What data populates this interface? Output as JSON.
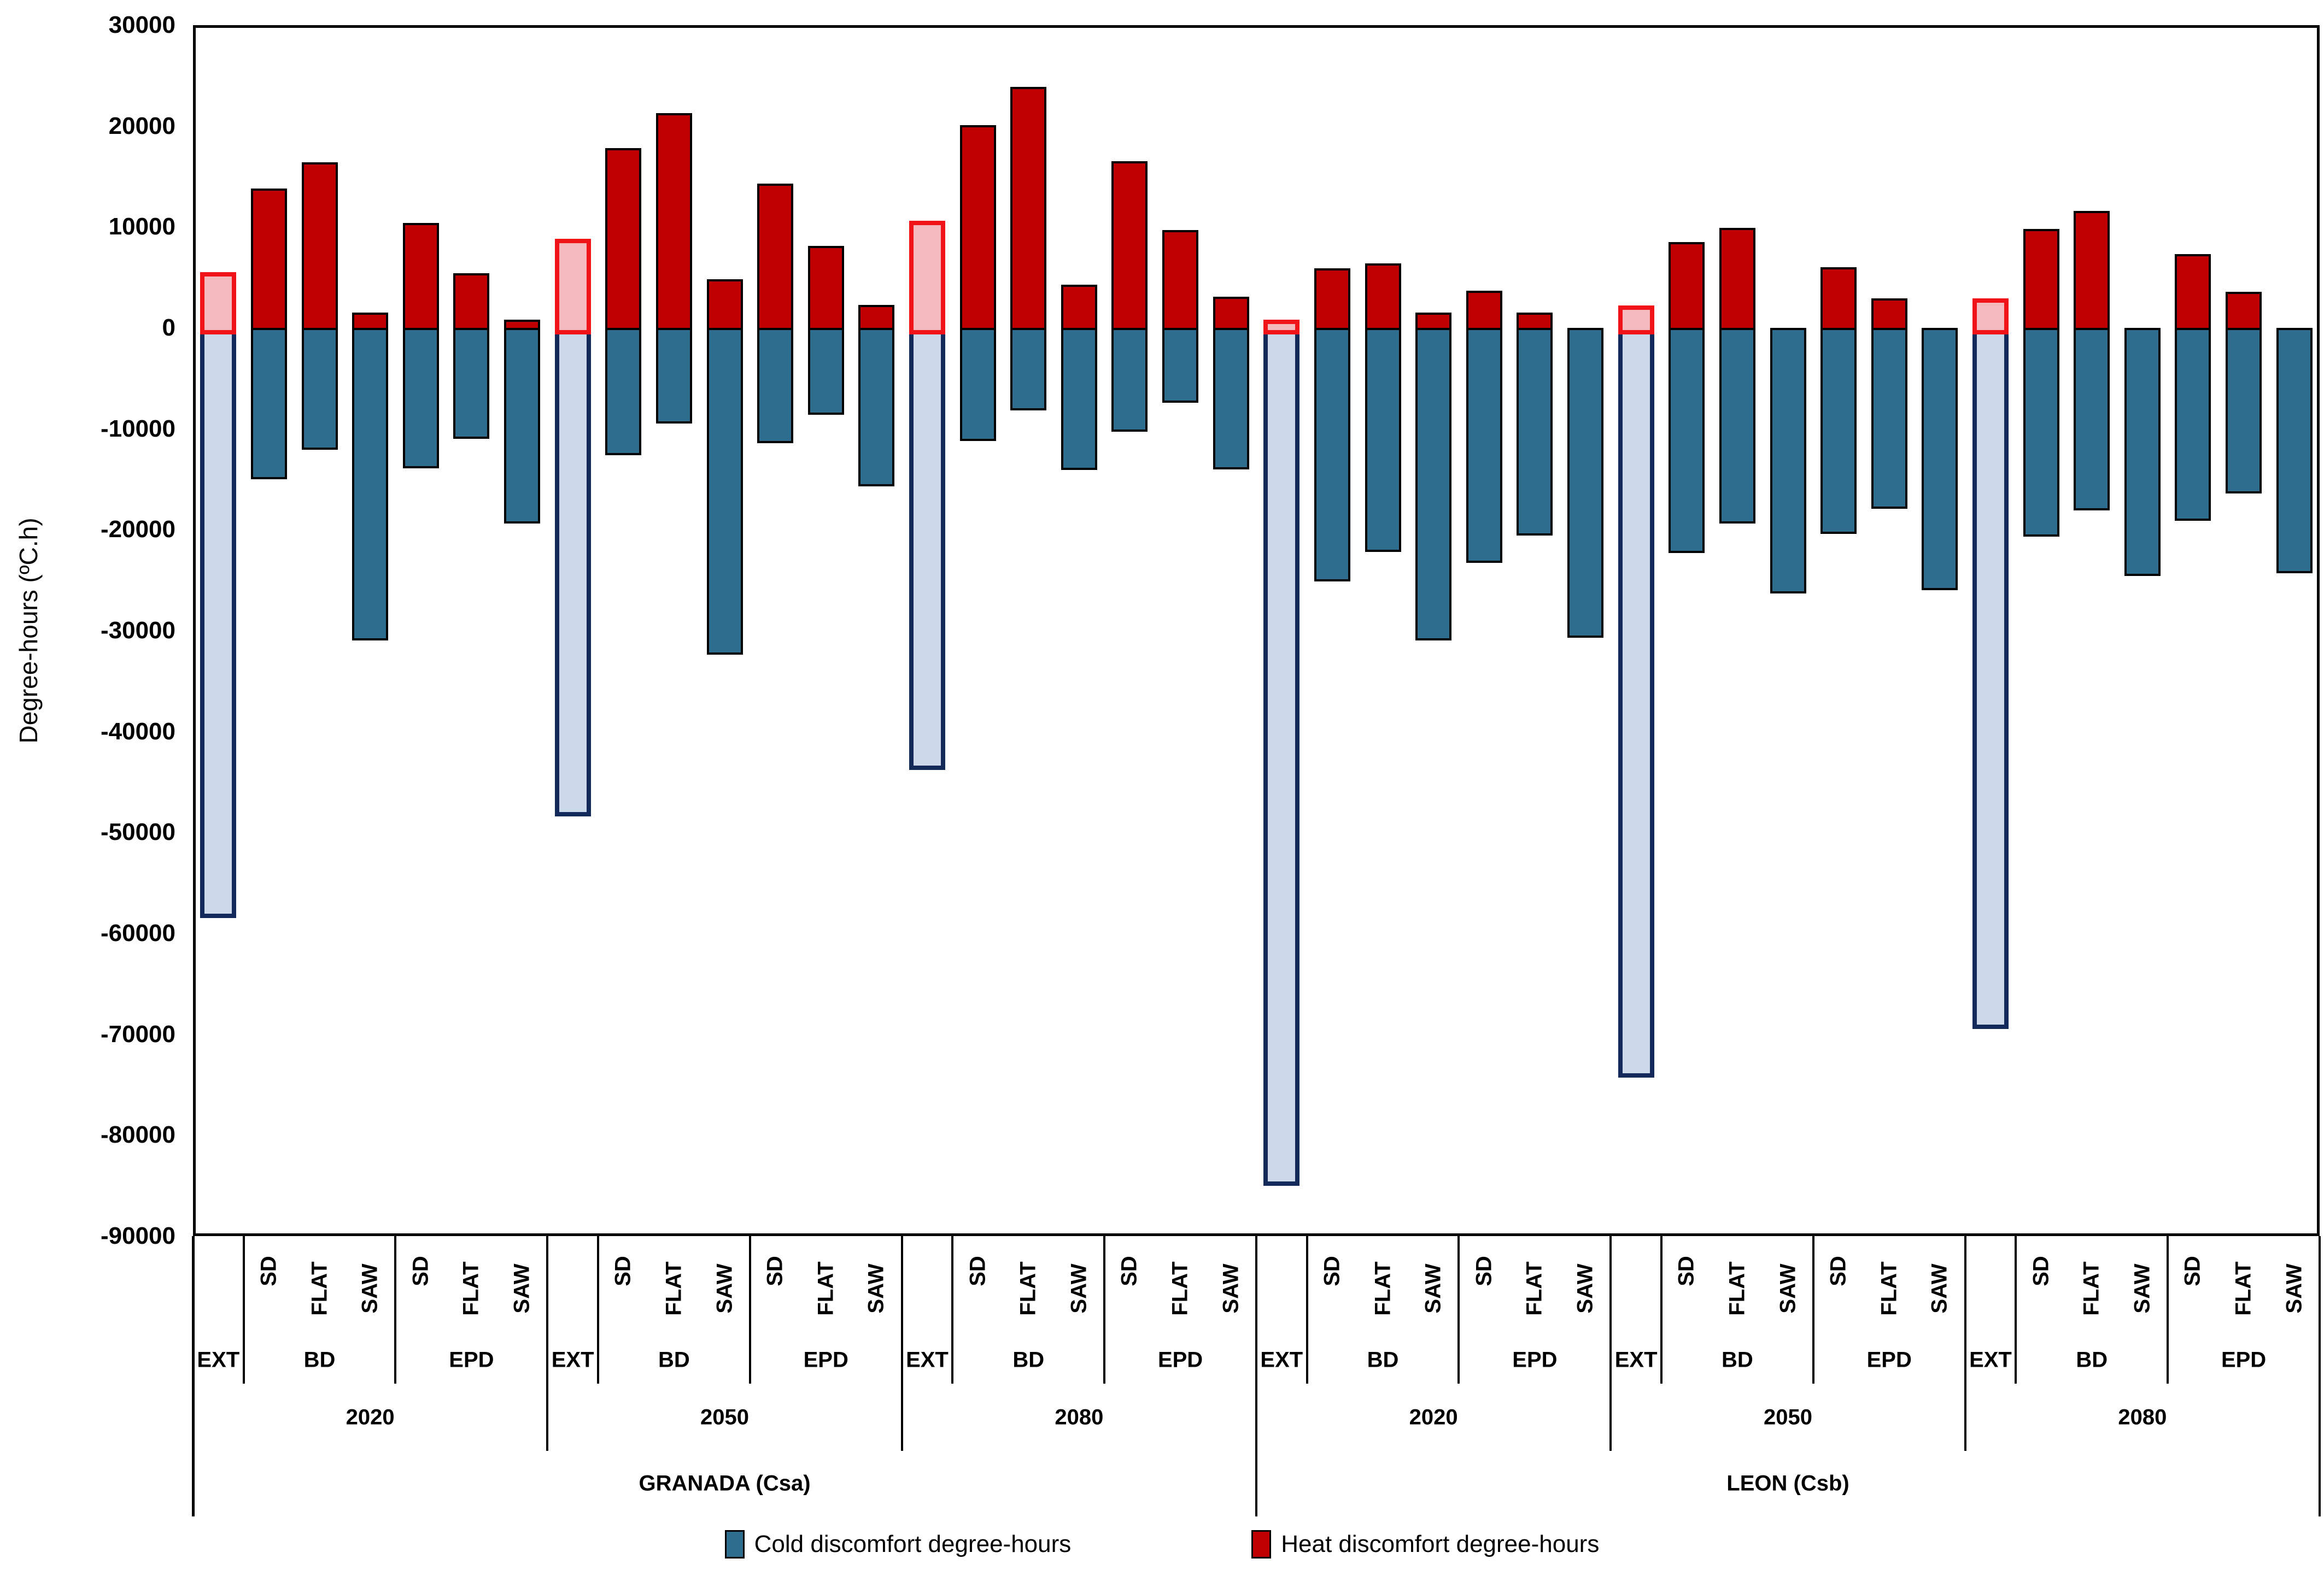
{
  "chart_data": {
    "type": "bar",
    "stacked": true,
    "title": "",
    "xlabel": "",
    "ylabel": "Degree-hours (ºC.h)",
    "ylim": [
      -90000,
      30000
    ],
    "grid": false,
    "legend_position": "bottom-center",
    "yticks": [
      {
        "value": 30000,
        "label": "30000"
      },
      {
        "value": 20000,
        "label": "20000"
      },
      {
        "value": 10000,
        "label": "10000"
      },
      {
        "value": 0,
        "label": "0"
      },
      {
        "value": -10000,
        "label": "-10000"
      },
      {
        "value": -20000,
        "label": "-20000"
      },
      {
        "value": -30000,
        "label": "-30000"
      },
      {
        "value": -40000,
        "label": "-40000"
      },
      {
        "value": -50000,
        "label": "-50000"
      },
      {
        "value": -60000,
        "label": "-60000"
      },
      {
        "value": -70000,
        "label": "-70000"
      },
      {
        "value": -80000,
        "label": "-80000"
      },
      {
        "value": -90000,
        "label": "-90000"
      }
    ],
    "legend": [
      {
        "label": "Cold discomfort degree-hours",
        "color": "#2E6D8E"
      },
      {
        "label": "Heat discomfort degree-hours",
        "color": "#C00000"
      }
    ],
    "colors": {
      "cold_fill": "#2E6D8E",
      "heat_fill": "#C00000",
      "bar_border": "#000000",
      "ext_cold_fill": "#CBD9E8",
      "ext_cold_border": "#13295A",
      "ext_heat_fill": "#F3B9BC",
      "ext_heat_border": "#F01418"
    },
    "sections": [
      {
        "label": "EXT",
        "span": 1
      },
      {
        "label": "BD",
        "span": 3
      },
      {
        "label": "EPD",
        "span": 3
      }
    ],
    "cities": [
      {
        "name": "GRANADA (Csa)",
        "years": [
          {
            "year": "2020",
            "bars": [
              {
                "sub": "",
                "ext": true,
                "heat": 5500,
                "cold": -58500
              },
              {
                "sub": "SD",
                "ext": false,
                "heat": 13800,
                "cold": -15000
              },
              {
                "sub": "FLAT",
                "ext": false,
                "heat": 16400,
                "cold": -12100
              },
              {
                "sub": "SAW",
                "ext": false,
                "heat": 1500,
                "cold": -31000
              },
              {
                "sub": "SD",
                "ext": false,
                "heat": 10400,
                "cold": -13900
              },
              {
                "sub": "FLAT",
                "ext": false,
                "heat": 5400,
                "cold": -11000
              },
              {
                "sub": "SAW",
                "ext": false,
                "heat": 800,
                "cold": -19400
              }
            ]
          },
          {
            "year": "2050",
            "bars": [
              {
                "sub": "",
                "ext": true,
                "heat": 8800,
                "cold": -48400
              },
              {
                "sub": "SD",
                "ext": false,
                "heat": 17800,
                "cold": -12600
              },
              {
                "sub": "FLAT",
                "ext": false,
                "heat": 21300,
                "cold": -9500
              },
              {
                "sub": "SAW",
                "ext": false,
                "heat": 4800,
                "cold": -32400
              },
              {
                "sub": "SD",
                "ext": false,
                "heat": 14300,
                "cold": -11400
              },
              {
                "sub": "FLAT",
                "ext": false,
                "heat": 8100,
                "cold": -8600
              },
              {
                "sub": "SAW",
                "ext": false,
                "heat": 2300,
                "cold": -15700
              }
            ]
          },
          {
            "year": "2080",
            "bars": [
              {
                "sub": "",
                "ext": true,
                "heat": 10600,
                "cold": -43800
              },
              {
                "sub": "SD",
                "ext": false,
                "heat": 20100,
                "cold": -11200
              },
              {
                "sub": "FLAT",
                "ext": false,
                "heat": 23900,
                "cold": -8200
              },
              {
                "sub": "SAW",
                "ext": false,
                "heat": 4300,
                "cold": -14100
              },
              {
                "sub": "SD",
                "ext": false,
                "heat": 16500,
                "cold": -10300
              },
              {
                "sub": "FLAT",
                "ext": false,
                "heat": 9700,
                "cold": -7400
              },
              {
                "sub": "SAW",
                "ext": false,
                "heat": 3100,
                "cold": -14000
              }
            ]
          }
        ]
      },
      {
        "name": "LEON (Csb)",
        "years": [
          {
            "year": "2020",
            "bars": [
              {
                "sub": "",
                "ext": true,
                "heat": 800,
                "cold": -85000
              },
              {
                "sub": "SD",
                "ext": false,
                "heat": 5900,
                "cold": -25100
              },
              {
                "sub": "FLAT",
                "ext": false,
                "heat": 6400,
                "cold": -22200
              },
              {
                "sub": "SAW",
                "ext": false,
                "heat": 1500,
                "cold": -31000
              },
              {
                "sub": "SD",
                "ext": false,
                "heat": 3700,
                "cold": -23300
              },
              {
                "sub": "FLAT",
                "ext": false,
                "heat": 1500,
                "cold": -20600
              },
              {
                "sub": "SAW",
                "ext": false,
                "heat": 0,
                "cold": -30700
              }
            ]
          },
          {
            "year": "2050",
            "bars": [
              {
                "sub": "",
                "ext": true,
                "heat": 2200,
                "cold": -74300
              },
              {
                "sub": "SD",
                "ext": false,
                "heat": 8500,
                "cold": -22300
              },
              {
                "sub": "FLAT",
                "ext": false,
                "heat": 9900,
                "cold": -19400
              },
              {
                "sub": "SAW",
                "ext": false,
                "heat": 0,
                "cold": -26300
              },
              {
                "sub": "SD",
                "ext": false,
                "heat": 6000,
                "cold": -20400
              },
              {
                "sub": "FLAT",
                "ext": false,
                "heat": 2900,
                "cold": -17900
              },
              {
                "sub": "SAW",
                "ext": false,
                "heat": 0,
                "cold": -26000
              }
            ]
          },
          {
            "year": "2080",
            "bars": [
              {
                "sub": "",
                "ext": true,
                "heat": 2900,
                "cold": -69500
              },
              {
                "sub": "SD",
                "ext": false,
                "heat": 9800,
                "cold": -20700
              },
              {
                "sub": "FLAT",
                "ext": false,
                "heat": 11600,
                "cold": -18100
              },
              {
                "sub": "SAW",
                "ext": false,
                "heat": 0,
                "cold": -24600
              },
              {
                "sub": "SD",
                "ext": false,
                "heat": 7300,
                "cold": -19100
              },
              {
                "sub": "FLAT",
                "ext": false,
                "heat": 3600,
                "cold": -16400
              },
              {
                "sub": "SAW",
                "ext": false,
                "heat": 0,
                "cold": -24300
              }
            ]
          }
        ]
      }
    ]
  }
}
